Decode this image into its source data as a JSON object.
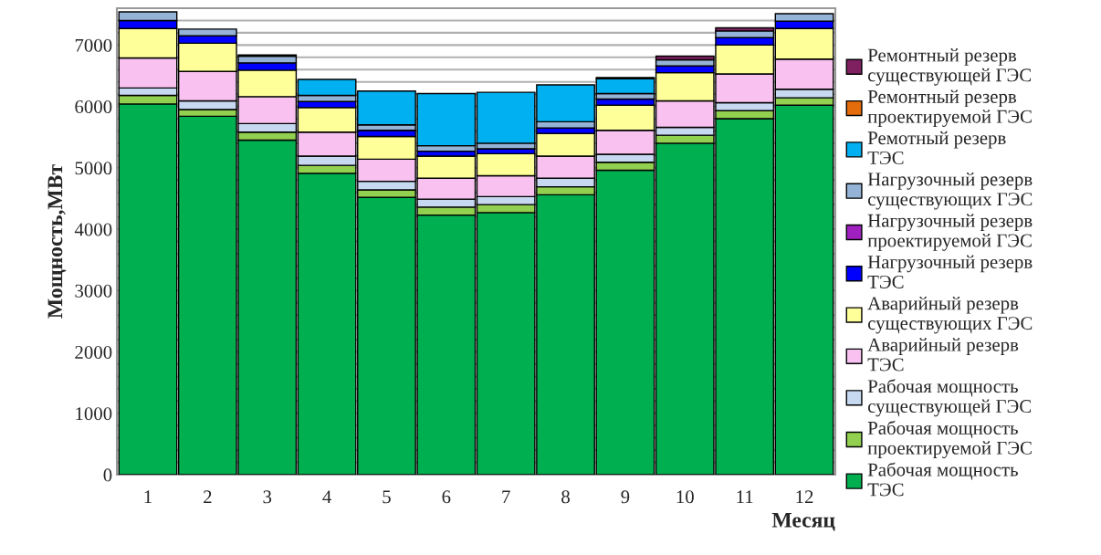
{
  "chart_data": {
    "type": "bar",
    "stacked": true,
    "xlabel": "Месяц",
    "ylabel": "Мощность,МВт",
    "categories": [
      "1",
      "2",
      "3",
      "4",
      "5",
      "6",
      "7",
      "8",
      "9",
      "10",
      "11",
      "12"
    ],
    "ylim": [
      0,
      7600
    ],
    "yticks": [
      0,
      {
        "value": 200,
        "label": null
      },
      {
        "value": 400,
        "label": null
      },
      {
        "value": 600,
        "label": null
      },
      {
        "value": 800,
        "label": null
      },
      1000,
      {
        "value": 1200,
        "label": null
      },
      {
        "value": 1400,
        "label": null
      },
      {
        "value": 1600,
        "label": null
      },
      {
        "value": 1800,
        "label": null
      },
      2000,
      {
        "value": 2200,
        "label": null
      },
      {
        "value": 2400,
        "label": null
      },
      {
        "value": 2600,
        "label": null
      },
      {
        "value": 2800,
        "label": null
      },
      3000,
      {
        "value": 3200,
        "label": null
      },
      {
        "value": 3400,
        "label": null
      },
      {
        "value": 3600,
        "label": null
      },
      {
        "value": 3800,
        "label": null
      },
      4000,
      {
        "value": 4200,
        "label": null
      },
      {
        "value": 4400,
        "label": null
      },
      {
        "value": 4600,
        "label": null
      },
      {
        "value": 4800,
        "label": null
      },
      5000,
      {
        "value": 5200,
        "label": null
      },
      {
        "value": 5400,
        "label": null
      },
      {
        "value": 5600,
        "label": null
      },
      {
        "value": 5800,
        "label": null
      },
      6000,
      {
        "value": 6200,
        "label": null
      },
      {
        "value": 6400,
        "label": null
      },
      {
        "value": 6600,
        "label": null
      },
      {
        "value": 6800,
        "label": null
      },
      7000,
      {
        "value": 7200,
        "label": null
      },
      {
        "value": 7400,
        "label": null
      },
      {
        "value": 7600,
        "label": null
      }
    ],
    "grid": "y",
    "legend": "right",
    "series": [
      {
        "name": "Рабочая мощность\nТЭС",
        "color": "#00b050",
        "values": [
          6040,
          5840,
          5450,
          4910,
          4520,
          4230,
          4270,
          4560,
          4960,
          5400,
          5800,
          6020
        ]
      },
      {
        "name": "Рабочая мощность\nпроектируемой ГЭС",
        "color": "#92d050",
        "values": [
          140,
          110,
          130,
          130,
          120,
          130,
          130,
          130,
          130,
          130,
          130,
          120
        ]
      },
      {
        "name": "Рабочая мощность\nсуществующей ГЭС",
        "color": "#c6d9f1",
        "values": [
          120,
          140,
          140,
          150,
          140,
          130,
          130,
          140,
          130,
          130,
          130,
          140
        ]
      },
      {
        "name": "Аварийный резерв\nТЭС",
        "color": "#f8c1f0",
        "values": [
          490,
          480,
          440,
          390,
          360,
          340,
          340,
          360,
          390,
          430,
          470,
          490
        ]
      },
      {
        "name": "Аварийный резерв\nсуществующих ГЭС",
        "color": "#ffff99",
        "values": [
          480,
          460,
          430,
          400,
          370,
          360,
          360,
          370,
          410,
          460,
          470,
          500
        ]
      },
      {
        "name": "Нагрузочный резерв\nТЭС",
        "color": "#0000ff",
        "values": [
          130,
          120,
          120,
          100,
          100,
          80,
          80,
          90,
          100,
          110,
          120,
          120
        ]
      },
      {
        "name": "Нагрузочный резерв\nпроектируемой ГЭС",
        "color": "#a020c0",
        "values": [
          0,
          0,
          0,
          0,
          0,
          0,
          0,
          0,
          0,
          0,
          0,
          0
        ]
      },
      {
        "name": "Нагрузочный резерв\nсуществующих ГЭС",
        "color": "#95b3d7",
        "values": [
          140,
          110,
          110,
          100,
          90,
          90,
          90,
          100,
          90,
          100,
          110,
          120
        ]
      },
      {
        "name": "Ремотный резерв\nТЭС",
        "color": "#00b0f0",
        "values": [
          0,
          0,
          0,
          260,
          550,
          850,
          830,
          600,
          240,
          0,
          0,
          0
        ]
      },
      {
        "name": "Ремонтный резерв\nпроектируемой ГЭС",
        "color": "#e46c0a",
        "values": [
          0,
          0,
          20,
          0,
          0,
          0,
          0,
          0,
          20,
          0,
          0,
          0
        ]
      },
      {
        "name": "Ремонтный резерв\nсуществующей ГЭС",
        "color": "#7f2060",
        "values": [
          0,
          0,
          0,
          0,
          0,
          0,
          0,
          0,
          0,
          60,
          50,
          0
        ]
      }
    ]
  }
}
